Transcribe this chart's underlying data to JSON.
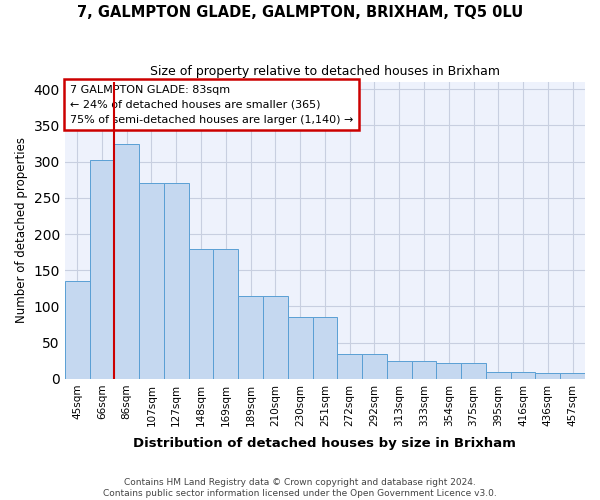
{
  "title": "7, GALMPTON GLADE, GALMPTON, BRIXHAM, TQ5 0LU",
  "subtitle": "Size of property relative to detached houses in Brixham",
  "xlabel": "Distribution of detached houses by size in Brixham",
  "ylabel": "Number of detached properties",
  "categories": [
    "45sqm",
    "66sqm",
    "86sqm",
    "107sqm",
    "127sqm",
    "148sqm",
    "169sqm",
    "189sqm",
    "210sqm",
    "230sqm",
    "251sqm",
    "272sqm",
    "292sqm",
    "313sqm",
    "333sqm",
    "354sqm",
    "375sqm",
    "395sqm",
    "416sqm",
    "436sqm",
    "457sqm"
  ],
  "values": [
    135,
    302,
    325,
    270,
    270,
    180,
    180,
    115,
    115,
    85,
    85,
    35,
    35,
    25,
    25,
    22,
    22,
    10,
    10,
    8,
    8
  ],
  "bar_color": "#c5d8f0",
  "bar_edge_color": "#5a9fd4",
  "vline_x": 2,
  "vline_color": "#cc0000",
  "annotation_text": "7 GALMPTON GLADE: 83sqm\n← 24% of detached houses are smaller (365)\n75% of semi-detached houses are larger (1,140) →",
  "annotation_box_color": "#ffffff",
  "annotation_box_edge_color": "#cc0000",
  "footer_text": "Contains HM Land Registry data © Crown copyright and database right 2024.\nContains public sector information licensed under the Open Government Licence v3.0.",
  "ylim": [
    0,
    410
  ],
  "background_color": "#ffffff",
  "axes_background": "#eef2fc",
  "grid_color": "#c8cfe0"
}
